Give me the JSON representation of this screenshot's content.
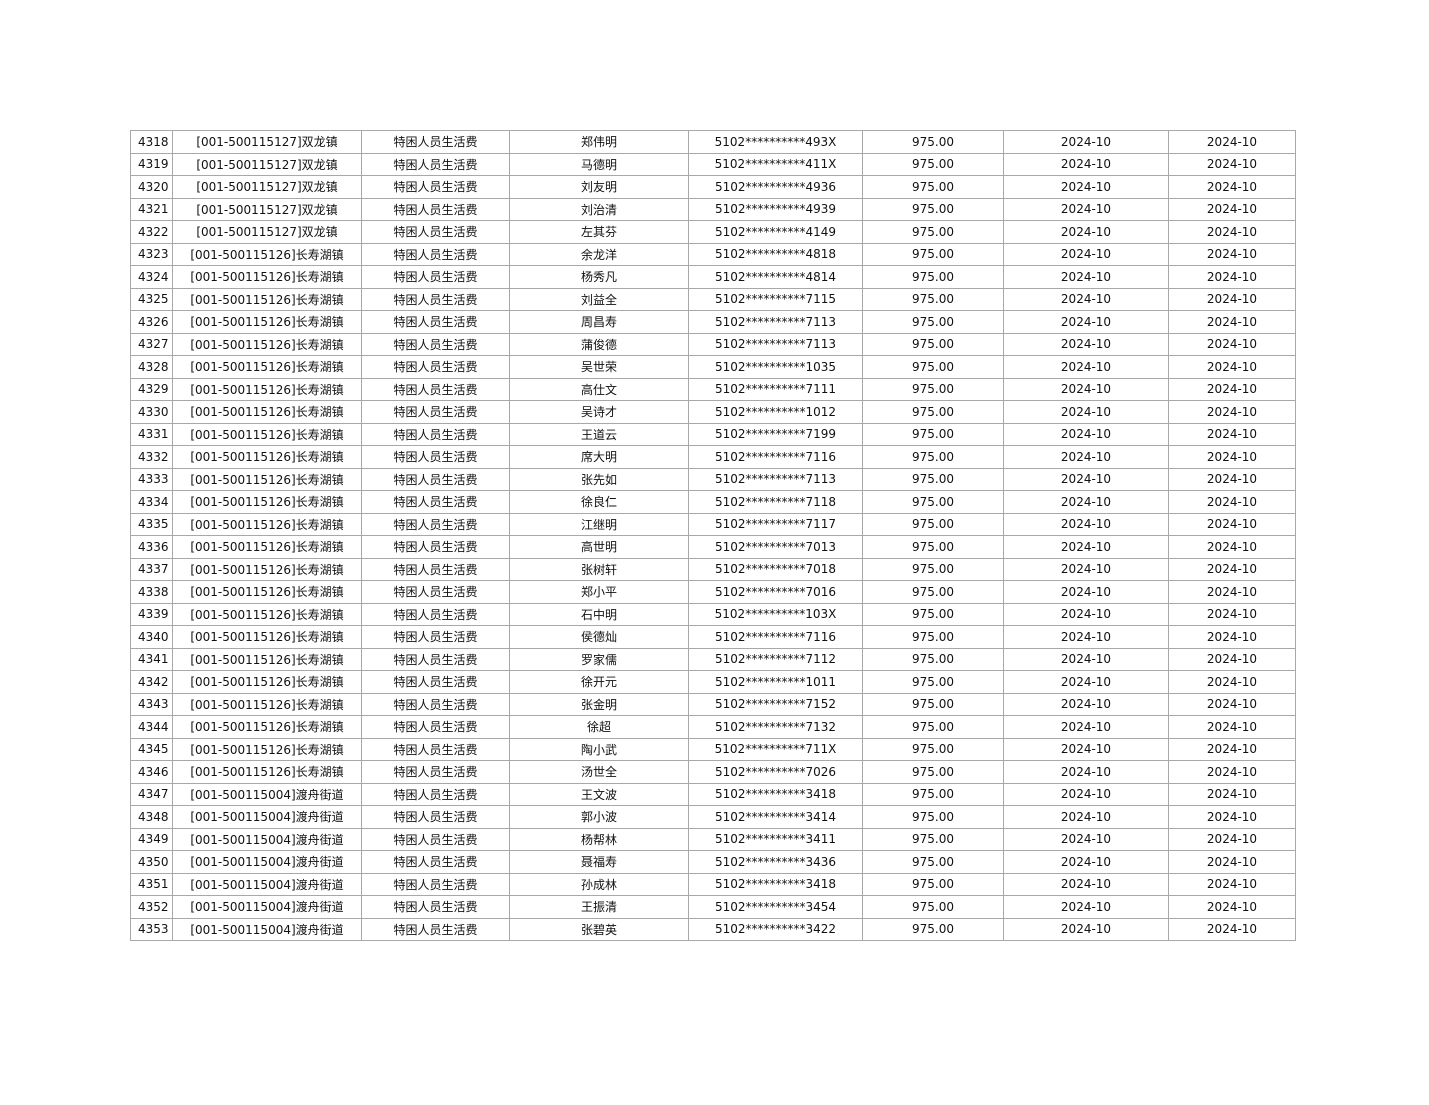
{
  "table": {
    "rows": [
      [
        "4318",
        "[001-500115127]双龙镇",
        "特困人员生活费",
        "郑伟明",
        "5102**********493X",
        "975.00",
        "2024-10",
        "2024-10"
      ],
      [
        "4319",
        "[001-500115127]双龙镇",
        "特困人员生活费",
        "马德明",
        "5102**********411X",
        "975.00",
        "2024-10",
        "2024-10"
      ],
      [
        "4320",
        "[001-500115127]双龙镇",
        "特困人员生活费",
        "刘友明",
        "5102**********4936",
        "975.00",
        "2024-10",
        "2024-10"
      ],
      [
        "4321",
        "[001-500115127]双龙镇",
        "特困人员生活费",
        "刘治清",
        "5102**********4939",
        "975.00",
        "2024-10",
        "2024-10"
      ],
      [
        "4322",
        "[001-500115127]双龙镇",
        "特困人员生活费",
        "左其芬",
        "5102**********4149",
        "975.00",
        "2024-10",
        "2024-10"
      ],
      [
        "4323",
        "[001-500115126]长寿湖镇",
        "特困人员生活费",
        "余龙洋",
        "5102**********4818",
        "975.00",
        "2024-10",
        "2024-10"
      ],
      [
        "4324",
        "[001-500115126]长寿湖镇",
        "特困人员生活费",
        "杨秀凡",
        "5102**********4814",
        "975.00",
        "2024-10",
        "2024-10"
      ],
      [
        "4325",
        "[001-500115126]长寿湖镇",
        "特困人员生活费",
        "刘益全",
        "5102**********7115",
        "975.00",
        "2024-10",
        "2024-10"
      ],
      [
        "4326",
        "[001-500115126]长寿湖镇",
        "特困人员生活费",
        "周昌寿",
        "5102**********7113",
        "975.00",
        "2024-10",
        "2024-10"
      ],
      [
        "4327",
        "[001-500115126]长寿湖镇",
        "特困人员生活费",
        "蒲俊德",
        "5102**********7113",
        "975.00",
        "2024-10",
        "2024-10"
      ],
      [
        "4328",
        "[001-500115126]长寿湖镇",
        "特困人员生活费",
        "吴世荣",
        "5102**********1035",
        "975.00",
        "2024-10",
        "2024-10"
      ],
      [
        "4329",
        "[001-500115126]长寿湖镇",
        "特困人员生活费",
        "高仕文",
        "5102**********7111",
        "975.00",
        "2024-10",
        "2024-10"
      ],
      [
        "4330",
        "[001-500115126]长寿湖镇",
        "特困人员生活费",
        "吴诗才",
        "5102**********1012",
        "975.00",
        "2024-10",
        "2024-10"
      ],
      [
        "4331",
        "[001-500115126]长寿湖镇",
        "特困人员生活费",
        "王道云",
        "5102**********7199",
        "975.00",
        "2024-10",
        "2024-10"
      ],
      [
        "4332",
        "[001-500115126]长寿湖镇",
        "特困人员生活费",
        "席大明",
        "5102**********7116",
        "975.00",
        "2024-10",
        "2024-10"
      ],
      [
        "4333",
        "[001-500115126]长寿湖镇",
        "特困人员生活费",
        "张先如",
        "5102**********7113",
        "975.00",
        "2024-10",
        "2024-10"
      ],
      [
        "4334",
        "[001-500115126]长寿湖镇",
        "特困人员生活费",
        "徐良仁",
        "5102**********7118",
        "975.00",
        "2024-10",
        "2024-10"
      ],
      [
        "4335",
        "[001-500115126]长寿湖镇",
        "特困人员生活费",
        "江继明",
        "5102**********7117",
        "975.00",
        "2024-10",
        "2024-10"
      ],
      [
        "4336",
        "[001-500115126]长寿湖镇",
        "特困人员生活费",
        "高世明",
        "5102**********7013",
        "975.00",
        "2024-10",
        "2024-10"
      ],
      [
        "4337",
        "[001-500115126]长寿湖镇",
        "特困人员生活费",
        "张树轩",
        "5102**********7018",
        "975.00",
        "2024-10",
        "2024-10"
      ],
      [
        "4338",
        "[001-500115126]长寿湖镇",
        "特困人员生活费",
        "郑小平",
        "5102**********7016",
        "975.00",
        "2024-10",
        "2024-10"
      ],
      [
        "4339",
        "[001-500115126]长寿湖镇",
        "特困人员生活费",
        "石中明",
        "5102**********103X",
        "975.00",
        "2024-10",
        "2024-10"
      ],
      [
        "4340",
        "[001-500115126]长寿湖镇",
        "特困人员生活费",
        "侯德灿",
        "5102**********7116",
        "975.00",
        "2024-10",
        "2024-10"
      ],
      [
        "4341",
        "[001-500115126]长寿湖镇",
        "特困人员生活费",
        "罗家儒",
        "5102**********7112",
        "975.00",
        "2024-10",
        "2024-10"
      ],
      [
        "4342",
        "[001-500115126]长寿湖镇",
        "特困人员生活费",
        "徐开元",
        "5102**********1011",
        "975.00",
        "2024-10",
        "2024-10"
      ],
      [
        "4343",
        "[001-500115126]长寿湖镇",
        "特困人员生活费",
        "张金明",
        "5102**********7152",
        "975.00",
        "2024-10",
        "2024-10"
      ],
      [
        "4344",
        "[001-500115126]长寿湖镇",
        "特困人员生活费",
        "徐超",
        "5102**********7132",
        "975.00",
        "2024-10",
        "2024-10"
      ],
      [
        "4345",
        "[001-500115126]长寿湖镇",
        "特困人员生活费",
        "陶小武",
        "5102**********711X",
        "975.00",
        "2024-10",
        "2024-10"
      ],
      [
        "4346",
        "[001-500115126]长寿湖镇",
        "特困人员生活费",
        "汤世全",
        "5102**********7026",
        "975.00",
        "2024-10",
        "2024-10"
      ],
      [
        "4347",
        "[001-500115004]渡舟街道",
        "特困人员生活费",
        "王文波",
        "5102**********3418",
        "975.00",
        "2024-10",
        "2024-10"
      ],
      [
        "4348",
        "[001-500115004]渡舟街道",
        "特困人员生活费",
        "郭小波",
        "5102**********3414",
        "975.00",
        "2024-10",
        "2024-10"
      ],
      [
        "4349",
        "[001-500115004]渡舟街道",
        "特困人员生活费",
        "杨帮林",
        "5102**********3411",
        "975.00",
        "2024-10",
        "2024-10"
      ],
      [
        "4350",
        "[001-500115004]渡舟街道",
        "特困人员生活费",
        "聂福寿",
        "5102**********3436",
        "975.00",
        "2024-10",
        "2024-10"
      ],
      [
        "4351",
        "[001-500115004]渡舟街道",
        "特困人员生活费",
        "孙成林",
        "5102**********3418",
        "975.00",
        "2024-10",
        "2024-10"
      ],
      [
        "4352",
        "[001-500115004]渡舟街道",
        "特困人员生活费",
        "王振清",
        "5102**********3454",
        "975.00",
        "2024-10",
        "2024-10"
      ],
      [
        "4353",
        "[001-500115004]渡舟街道",
        "特困人员生活费",
        "张碧英",
        "5102**********3422",
        "975.00",
        "2024-10",
        "2024-10"
      ]
    ]
  }
}
